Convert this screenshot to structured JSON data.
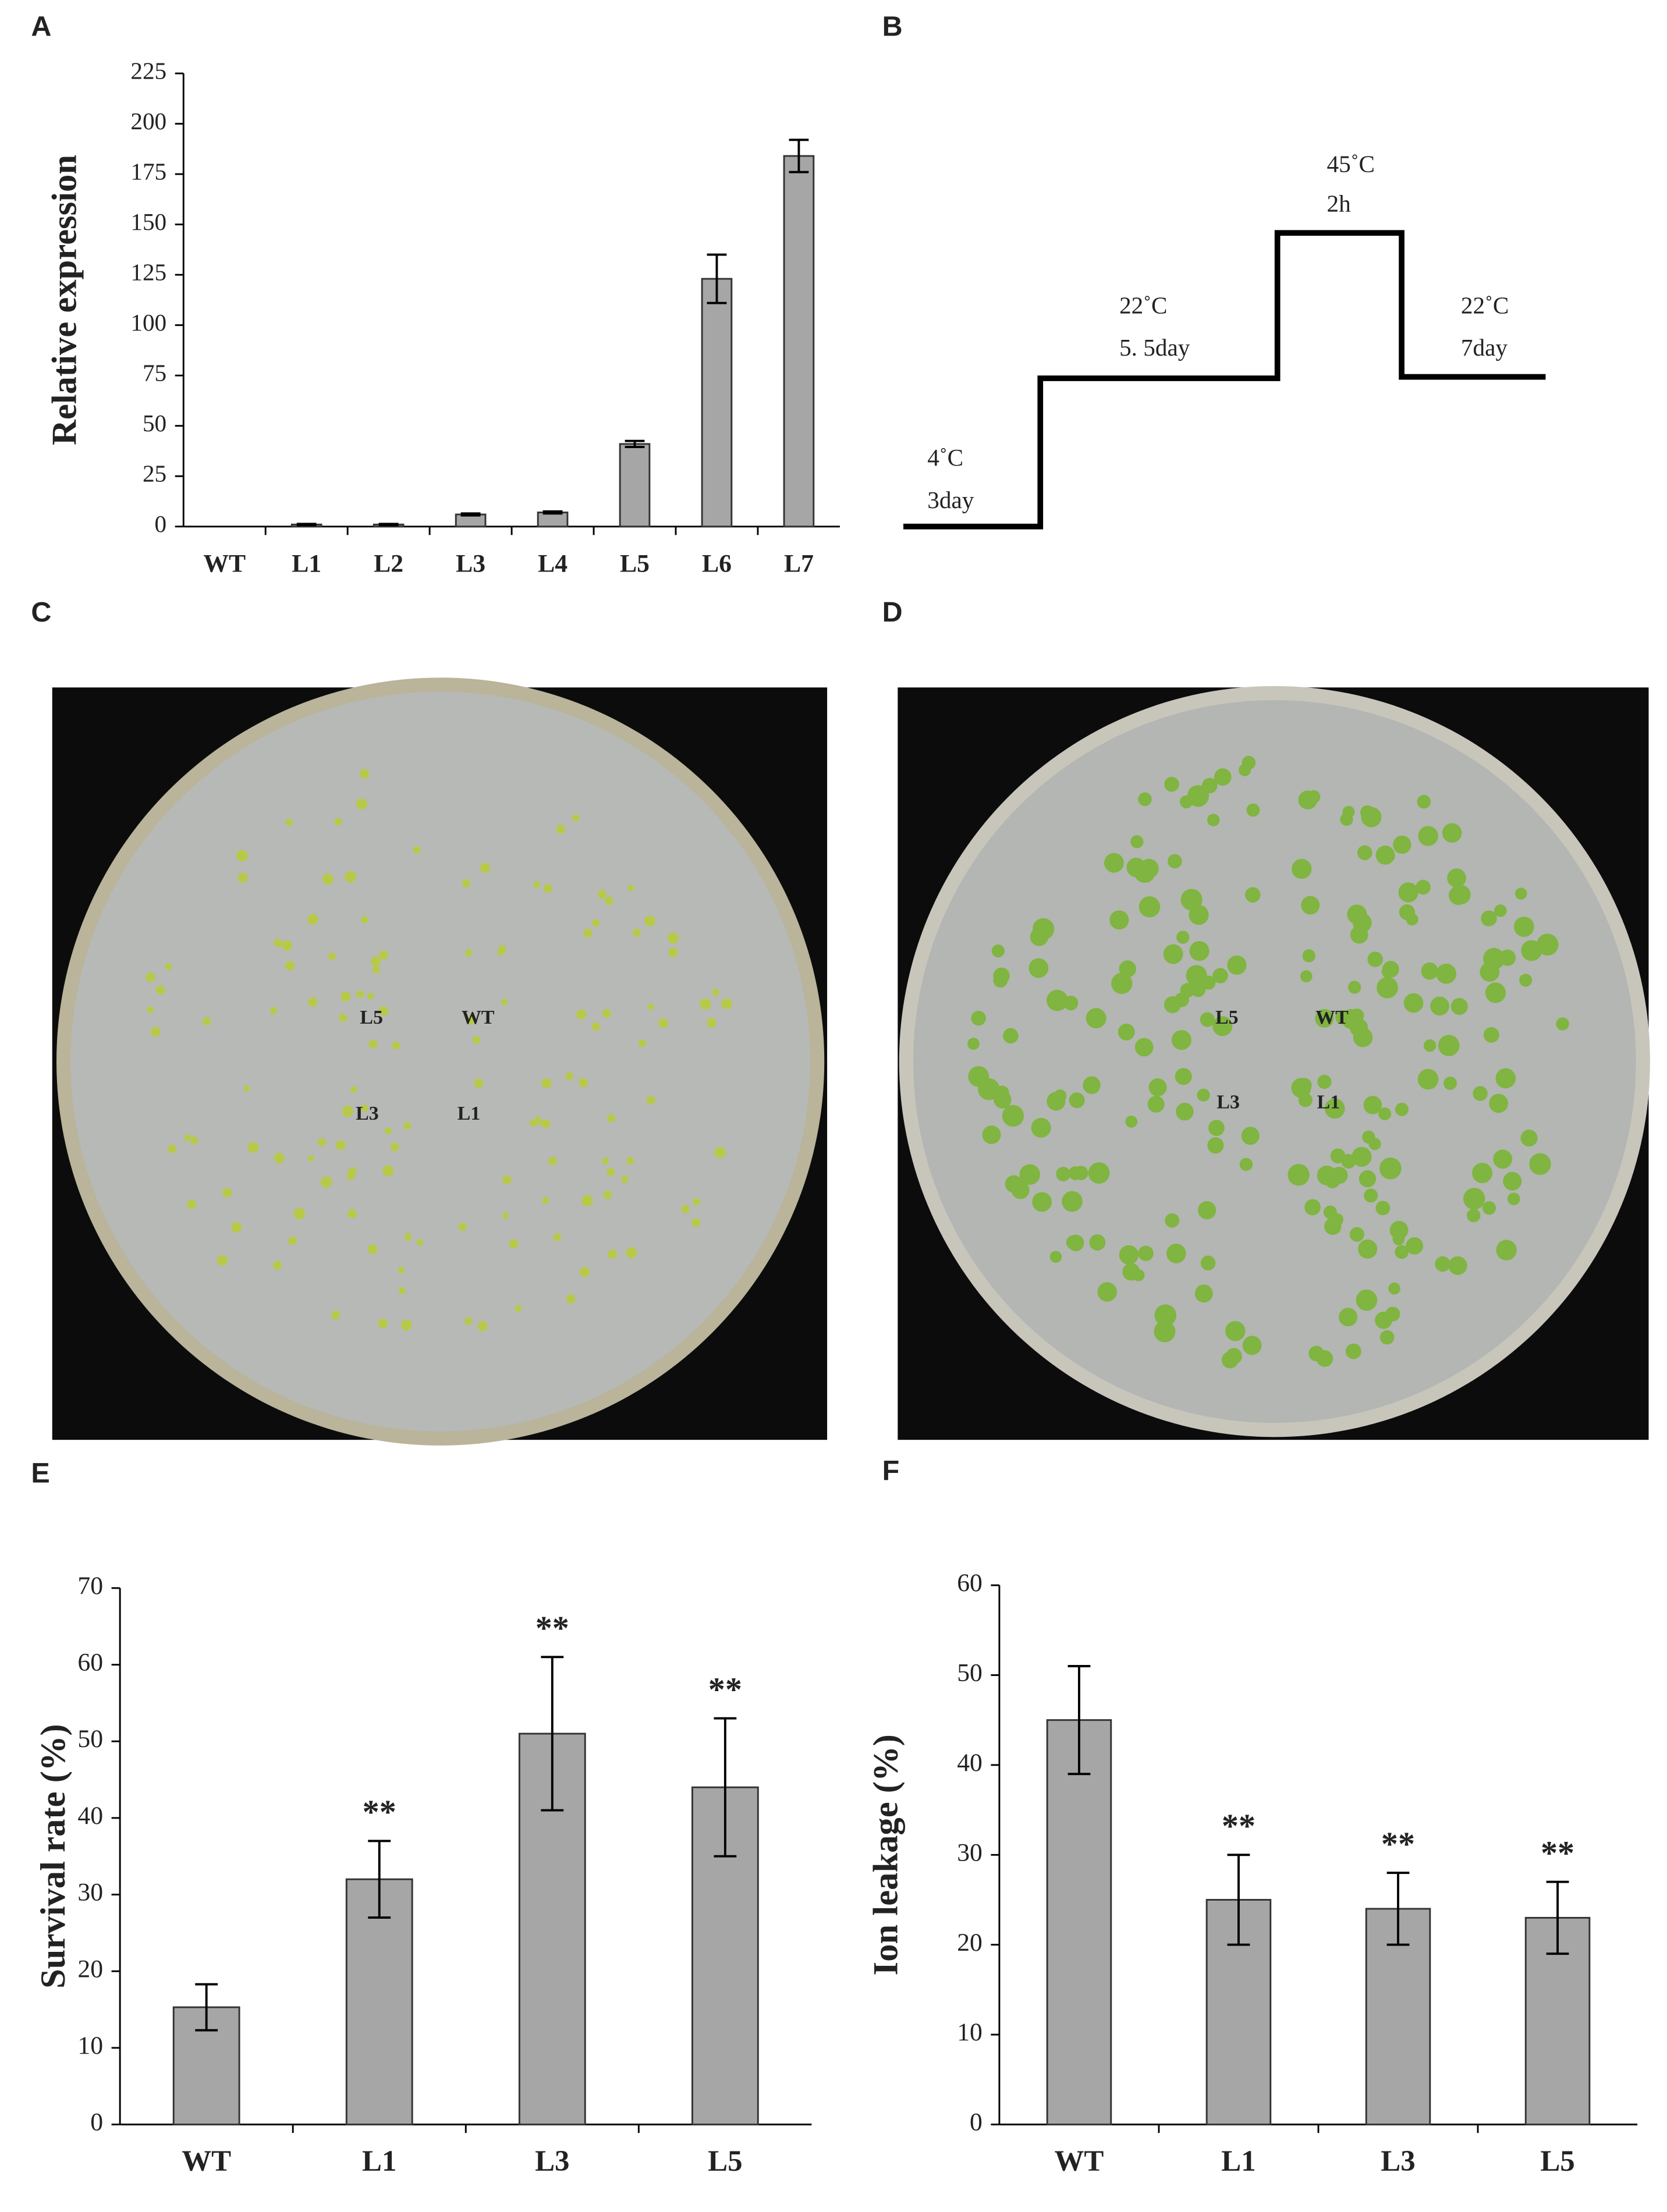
{
  "chart_data": [
    {
      "type": "bar",
      "panel": "A",
      "ylabel": "Relative expression",
      "categories": [
        "WT",
        "L1",
        "L2",
        "L3",
        "L4",
        "L5",
        "L6",
        "L7"
      ],
      "values": [
        0,
        1,
        1,
        6,
        7,
        41,
        123,
        184
      ],
      "errors": [
        0,
        0.3,
        0.3,
        0.5,
        0.5,
        1.5,
        12,
        8
      ],
      "color": "#a6a6a6",
      "ylim": [
        0,
        225
      ],
      "yticks": [
        0,
        25,
        50,
        75,
        100,
        125,
        150,
        175,
        200,
        225
      ]
    },
    {
      "type": "bar",
      "panel": "E",
      "ylabel": "Survival rate (%)",
      "categories": [
        "WT",
        "L1",
        "L3",
        "L5"
      ],
      "values": [
        15.3,
        32,
        51,
        44
      ],
      "errors": [
        3,
        5,
        10,
        9
      ],
      "significance": [
        null,
        "**",
        "**",
        "**"
      ],
      "color": "#a6a6a6",
      "ylim": [
        0,
        70
      ],
      "yticks": [
        0,
        10,
        20,
        30,
        40,
        50,
        60,
        70
      ]
    },
    {
      "type": "bar",
      "panel": "F",
      "ylabel": "Ion leakage (%)",
      "categories": [
        "WT",
        "L1",
        "L3",
        "L5"
      ],
      "values": [
        45,
        25,
        24,
        23
      ],
      "errors": [
        6,
        5,
        4,
        4
      ],
      "significance": [
        null,
        "**",
        "**",
        "**"
      ],
      "color": "#a6a6a6",
      "ylim": [
        0,
        60
      ],
      "yticks": [
        0,
        10,
        20,
        30,
        40,
        50,
        60
      ]
    }
  ],
  "diagram": {
    "panel": "B",
    "steps": [
      {
        "temp": "4˚C",
        "duration": "3day"
      },
      {
        "temp": "22˚C",
        "duration": "5. 5day"
      },
      {
        "temp": "45˚C",
        "duration": "2h"
      },
      {
        "temp": "22˚C",
        "duration": "7day"
      }
    ]
  },
  "photos": [
    {
      "panel": "C",
      "labels": [
        "L5",
        "WT",
        "L3",
        "L1"
      ]
    },
    {
      "panel": "D",
      "labels": [
        "L5",
        "WT",
        "L3",
        "L1"
      ]
    }
  ]
}
